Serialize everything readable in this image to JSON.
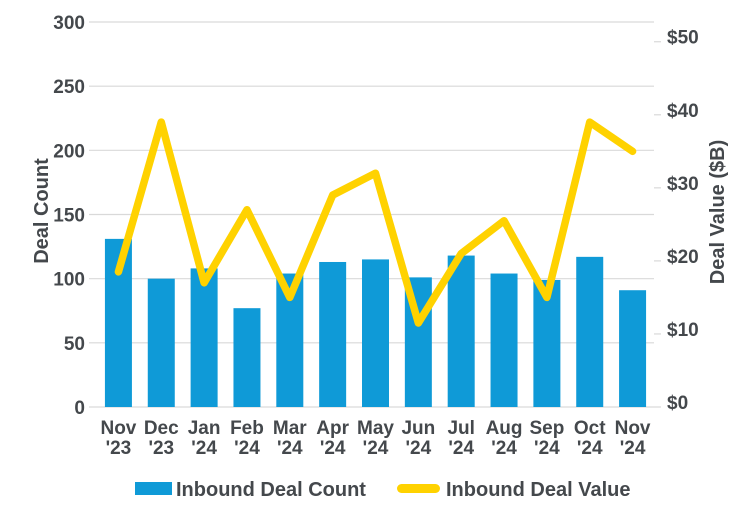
{
  "figure": {
    "background": "#FFFFFF",
    "text_color": "#44484C",
    "grid_color": "#D9D9D9"
  },
  "chart_data": {
    "type": "bar+line combo",
    "title": "",
    "categories": [
      "Nov '23",
      "Dec '23",
      "Jan '24",
      "Feb '24",
      "Mar '24",
      "Apr '24",
      "May '24",
      "Jun '24",
      "Jul '24",
      "Aug '24",
      "Sep '24",
      "Oct '24",
      "Nov '24"
    ],
    "category_labels": [
      [
        "Nov",
        "'23"
      ],
      [
        "Dec",
        "'23"
      ],
      [
        "Jan",
        "'24"
      ],
      [
        "Feb",
        "'24"
      ],
      [
        "Mar",
        "'24"
      ],
      [
        "Apr",
        "'24"
      ],
      [
        "May",
        "'24"
      ],
      [
        "Jun",
        "'24"
      ],
      [
        "Jul",
        "'24"
      ],
      [
        "Aug",
        "'24"
      ],
      [
        "Sep",
        "'24"
      ],
      [
        "Oct",
        "'24"
      ],
      [
        "Nov",
        "'24"
      ]
    ],
    "series": [
      {
        "name": "Inbound Deal Count",
        "type": "bar",
        "axis": "left",
        "color": "#0F9AD7",
        "values": [
          131,
          100,
          108,
          77,
          104,
          113,
          115,
          101,
          118,
          104,
          99,
          117,
          91
        ]
      },
      {
        "name": "Inbound Deal Value",
        "type": "line",
        "axis": "right",
        "color": "#FFD200",
        "values": [
          18.5,
          39,
          17,
          27,
          15,
          29,
          32,
          11.5,
          21,
          25.5,
          15,
          39,
          35
        ]
      }
    ],
    "left_axis": {
      "label": "Deal Count",
      "ticks": [
        0,
        50,
        100,
        150,
        200,
        250,
        300
      ],
      "min": 0,
      "max": 300
    },
    "right_axis": {
      "label": "Deal Value ($B)",
      "ticks": [
        "$0",
        "$10",
        "$20",
        "$30",
        "$40",
        "$50"
      ],
      "tick_values": [
        0,
        10,
        20,
        30,
        40,
        50
      ],
      "min": 0,
      "max": 52.7,
      "prefix": "$"
    },
    "grid": true,
    "legend_position": "bottom"
  }
}
